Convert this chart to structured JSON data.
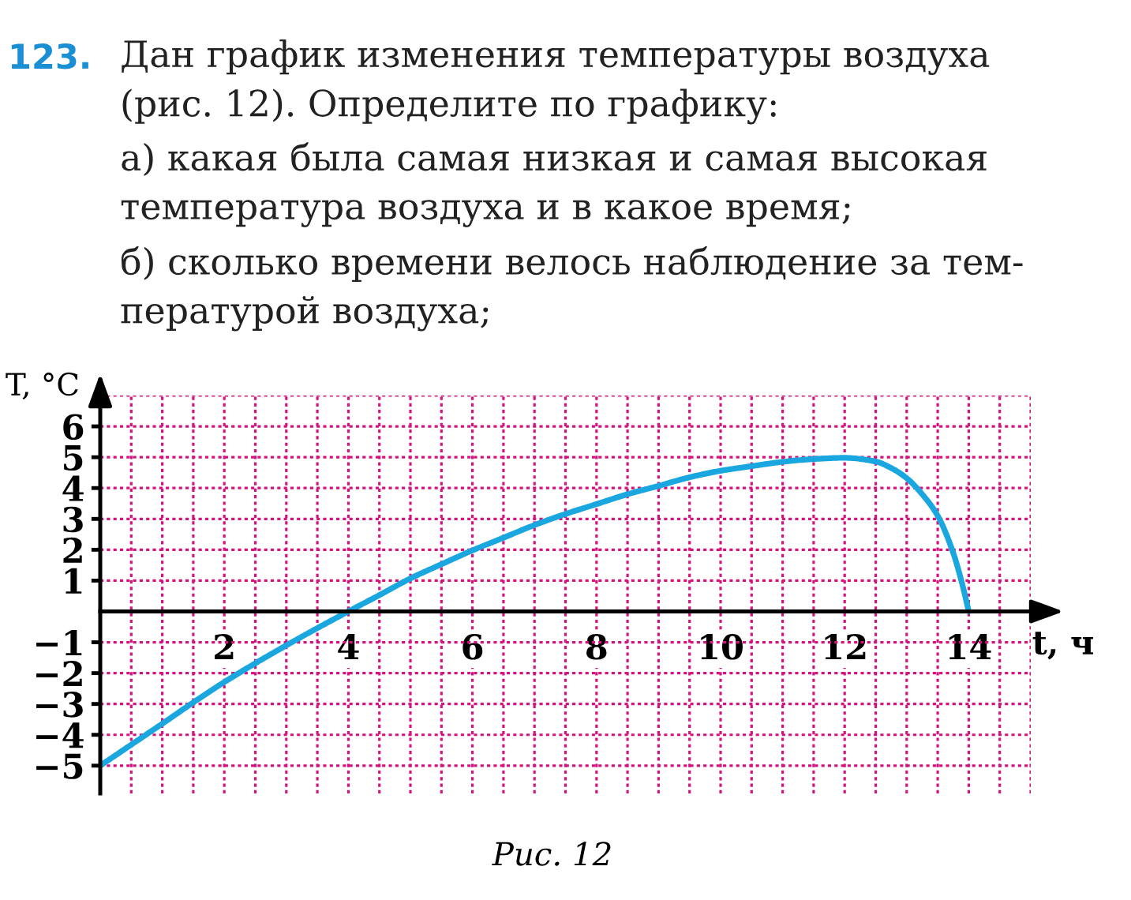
{
  "chart_data": {
    "type": "line",
    "xlabel": "t, ч",
    "ylabel": "T, °C",
    "annotations": [
      "123.",
      "Дан график изменения температуры воздуха\n(рис. 12). Определите по графику:",
      "а) какая была самая низкая и самая высокая\nтемпература воздуха и в какое время;",
      "б) сколько времени велось наблюдение за тем-\nпературой воздуха;",
      "Рис. 12"
    ],
    "x": [
      0,
      0.5,
      1,
      1.5,
      2,
      2.5,
      3,
      3.5,
      4,
      4.5,
      5,
      5.5,
      6,
      6.5,
      7,
      7.5,
      8,
      8.5,
      9,
      9.5,
      10,
      10.5,
      11,
      11.5,
      12,
      12.5,
      12.75,
      13,
      13.25,
      13.5,
      13.75,
      13.9,
      14
    ],
    "series": [
      {
        "color": "#1aa7e0",
        "values": [
          -5,
          -4.32,
          -3.64,
          -2.95,
          -2.29,
          -1.68,
          -1.1,
          -0.54,
          0,
          0.53,
          1.07,
          1.53,
          1.98,
          2.39,
          2.8,
          3.16,
          3.48,
          3.8,
          4.07,
          4.35,
          4.56,
          4.71,
          4.85,
          4.94,
          4.98,
          4.86,
          4.65,
          4.32,
          3.8,
          3.1,
          1.9,
          0.85,
          0
        ]
      }
    ],
    "xlim": [
      0,
      15
    ],
    "ylim": [
      -5.9,
      7
    ],
    "xticks": [
      {
        "value": 0.5,
        "label": null
      },
      {
        "value": 1,
        "label": null
      },
      {
        "value": 1.5,
        "label": null
      },
      2,
      {
        "value": 2.5,
        "label": null
      },
      {
        "value": 3,
        "label": null
      },
      {
        "value": 3.5,
        "label": null
      },
      4,
      {
        "value": 4.5,
        "label": null
      },
      {
        "value": 5,
        "label": null
      },
      {
        "value": 5.5,
        "label": null
      },
      6,
      {
        "value": 6.5,
        "label": null
      },
      {
        "value": 7,
        "label": null
      },
      {
        "value": 7.5,
        "label": null
      },
      8,
      {
        "value": 8.5,
        "label": null
      },
      {
        "value": 9,
        "label": null
      },
      {
        "value": 9.5,
        "label": null
      },
      10,
      {
        "value": 10.5,
        "label": null
      },
      {
        "value": 11,
        "label": null
      },
      {
        "value": 11.5,
        "label": null
      },
      12,
      {
        "value": 12.5,
        "label": null
      },
      {
        "value": 13,
        "label": null
      },
      {
        "value": 13.5,
        "label": null
      },
      14,
      {
        "value": 14.5,
        "label": null
      },
      {
        "value": 15,
        "label": null
      }
    ],
    "yticks": [
      {
        "value": -5,
        "label": "−5"
      },
      {
        "value": -4,
        "label": "−4"
      },
      {
        "value": -3,
        "label": "−3"
      },
      {
        "value": -2,
        "label": "−2"
      },
      {
        "value": -1,
        "label": "−1"
      },
      {
        "value": 0,
        "label": null
      },
      1,
      2,
      3,
      4,
      5,
      6,
      {
        "value": 7,
        "label": null
      }
    ],
    "grid": true,
    "line_style": "solid"
  }
}
